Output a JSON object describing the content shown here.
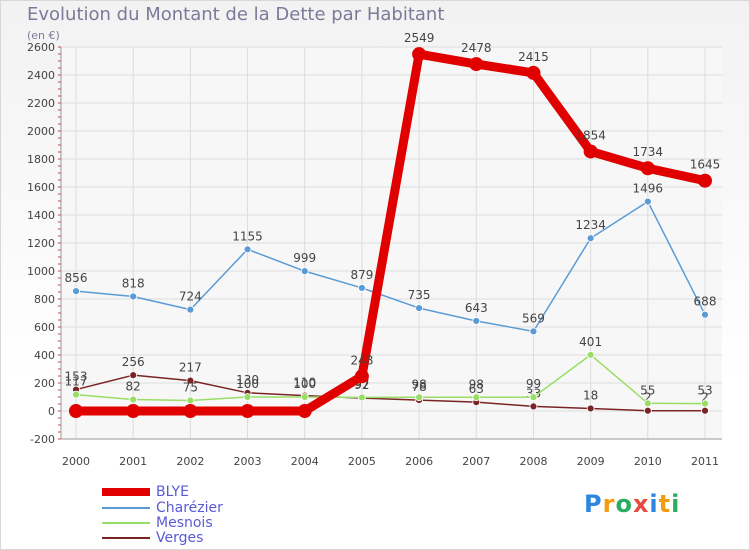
{
  "header": {
    "title": "Evolution du Montant de la Dette par Habitant",
    "subtitle": "(en €)"
  },
  "logo": "Proxiti",
  "chart_data": {
    "type": "line",
    "title": "Evolution du Montant de la Dette par Habitant",
    "subtitle": "(en €)",
    "xlabel": "",
    "ylabel": "",
    "x": [
      "2000",
      "2001",
      "2002",
      "2003",
      "2004",
      "2005",
      "2006",
      "2007",
      "2008",
      "2009",
      "2010",
      "2011"
    ],
    "ylim": [
      -200,
      2600
    ],
    "yticks": [
      -200,
      0,
      200,
      400,
      600,
      800,
      1000,
      1200,
      1400,
      1600,
      1800,
      2000,
      2200,
      2400,
      2600
    ],
    "grid": true,
    "legend_position": "bottom-left",
    "series": [
      {
        "name": "Verges",
        "color": "#7a2424",
        "values": [
          153,
          256,
          217,
          130,
          110,
          92,
          78,
          63,
          33,
          18,
          2,
          2
        ],
        "labels": [
          153,
          256,
          217,
          130,
          110,
          92,
          78,
          63,
          33,
          18,
          2,
          2
        ]
      },
      {
        "name": "Mesnois",
        "color": "#99dd66",
        "values": [
          117,
          82,
          75,
          100,
          100,
          97,
          98,
          98,
          99,
          401,
          55,
          53
        ],
        "labels": [
          117,
          82,
          75,
          100,
          100,
          97,
          98,
          98,
          99,
          401,
          55,
          53
        ]
      },
      {
        "name": "Charézier",
        "color": "#5b9bd5",
        "values": [
          856,
          818,
          724,
          1155,
          999,
          879,
          735,
          643,
          569,
          1234,
          1496,
          688
        ],
        "labels": [
          856,
          818,
          724,
          1155,
          999,
          879,
          735,
          643,
          569,
          1234,
          1496,
          688
        ]
      },
      {
        "name": "BLYE",
        "color": "#e00000",
        "values": [
          0,
          0,
          0,
          0,
          0,
          248,
          2549,
          2478,
          2415,
          1854,
          1734,
          1645
        ],
        "labels": [
          null,
          null,
          null,
          null,
          null,
          248,
          2549,
          2478,
          2415,
          1854,
          1734,
          1645
        ]
      }
    ],
    "legend_order": [
      "BLYE",
      "Charézier",
      "Mesnois",
      "Verges"
    ]
  }
}
